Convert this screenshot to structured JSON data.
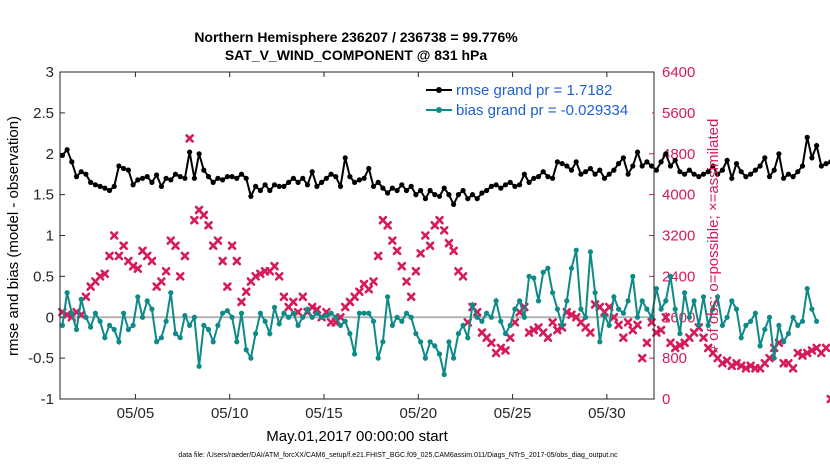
{
  "chart_data": {
    "type": "line",
    "title": "Northern Hemisphere 236207 / 236738 = 99.776%",
    "subtitle": "SAT_V_WIND_COMPONENT @ 831 hPa",
    "xlabel": "May.01,2017 00:00:00 start",
    "ylabel_left": "rmse and bias (model - observation)",
    "ylabel_right": "# of obs: o=possible; ×=assimilated",
    "xlim": [
      1.0,
      32.5
    ],
    "ylim_left": [
      -1,
      3
    ],
    "ylim_right": [
      0,
      6400
    ],
    "x_ticks": [
      5,
      10,
      15,
      20,
      25,
      30
    ],
    "x_tick_labels": [
      "05/05",
      "05/10",
      "05/15",
      "05/20",
      "05/25",
      "05/30"
    ],
    "y_left_ticks": [
      -1,
      -0.5,
      0,
      0.5,
      1,
      1.5,
      2,
      2.5,
      3
    ],
    "y_left_tick_labels": [
      "-1",
      "-0.5",
      "0",
      "0.5",
      "1",
      "1.5",
      "2",
      "2.5",
      "3"
    ],
    "y_right_ticks": [
      0,
      800,
      1600,
      2400,
      3200,
      4000,
      4800,
      5600,
      6400
    ],
    "y_right_tick_labels": [
      "0",
      "800",
      "1600",
      "2400",
      "3200",
      "4000",
      "4800",
      "5600",
      "6400"
    ],
    "zero_line": 0,
    "legend": {
      "placement": "top-right"
    },
    "x_start": 1.125,
    "x_step": 0.25,
    "series": [
      {
        "name": "rmse grand pr = 1.7182",
        "axis": "left",
        "color": "#000000",
        "marker": "dot",
        "values": [
          1.98,
          2.05,
          1.9,
          1.72,
          1.78,
          1.75,
          1.65,
          1.62,
          1.6,
          1.58,
          1.55,
          1.6,
          1.85,
          1.82,
          1.8,
          1.62,
          1.68,
          1.7,
          1.72,
          1.65,
          1.74,
          1.6,
          1.7,
          1.68,
          1.75,
          1.72,
          1.7,
          2.02,
          1.7,
          2.0,
          1.8,
          1.72,
          1.65,
          1.7,
          1.68,
          1.72,
          1.72,
          1.7,
          1.75,
          1.7,
          1.48,
          1.6,
          1.55,
          1.62,
          1.55,
          1.62,
          1.6,
          1.6,
          1.65,
          1.7,
          1.65,
          1.7,
          1.62,
          1.78,
          1.6,
          1.65,
          1.7,
          1.75,
          1.72,
          1.6,
          1.95,
          1.72,
          1.65,
          1.68,
          1.7,
          1.82,
          1.6,
          1.65,
          1.58,
          1.52,
          1.58,
          1.55,
          1.62,
          1.55,
          1.6,
          1.5,
          1.55,
          1.45,
          1.55,
          1.5,
          1.48,
          1.58,
          1.5,
          1.38,
          1.5,
          1.55,
          1.45,
          1.5,
          1.45,
          1.52,
          1.55,
          1.6,
          1.62,
          1.58,
          1.62,
          1.65,
          1.6,
          1.62,
          1.75,
          1.65,
          1.7,
          1.72,
          1.78,
          1.72,
          1.7,
          1.9,
          1.88,
          1.85,
          1.8,
          1.9,
          1.75,
          1.78,
          1.82,
          1.75,
          1.8,
          1.7,
          1.75,
          1.8,
          1.88,
          1.95,
          1.75,
          1.85,
          2.02,
          1.85,
          1.9,
          1.85,
          1.8,
          1.9,
          2.0,
          1.85,
          1.92,
          1.78,
          1.75,
          1.8,
          1.75,
          1.72,
          1.75,
          1.78,
          1.85,
          1.75,
          1.8,
          1.92,
          1.7,
          1.88,
          1.78,
          1.72,
          1.75,
          1.8,
          1.85,
          1.95,
          1.72,
          1.8,
          2.0,
          1.7,
          1.75,
          1.72,
          1.78,
          1.85,
          2.2,
          1.95,
          2.1,
          1.85,
          1.88,
          1.9
        ]
      },
      {
        "name": "bias grand pr = -0.029334",
        "axis": "left",
        "color": "#0e8a88",
        "marker": "dot",
        "values": [
          -0.1,
          0.3,
          0.05,
          -0.15,
          0.22,
          0.0,
          -0.12,
          0.05,
          -0.05,
          -0.25,
          -0.1,
          -0.15,
          -0.3,
          0.05,
          -0.15,
          -0.1,
          0.25,
          0.0,
          0.2,
          0.1,
          -0.3,
          -0.25,
          -0.05,
          0.3,
          -0.2,
          -0.25,
          0.02,
          -0.1,
          0.0,
          -0.6,
          -0.1,
          -0.15,
          -0.3,
          -0.1,
          0.05,
          0.08,
          0.0,
          -0.3,
          0.05,
          -0.4,
          -0.5,
          -0.2,
          0.05,
          -0.05,
          -0.2,
          0.12,
          -0.08,
          0.05,
          0.0,
          0.05,
          -0.1,
          0.0,
          0.1,
          0.0,
          0.05,
          0.0,
          0.02,
          0.05,
          0.0,
          -0.1,
          -0.05,
          -0.2,
          -0.45,
          0.05,
          0.05,
          0.05,
          -0.05,
          -0.5,
          -0.3,
          0.25,
          -0.1,
          0.0,
          -0.05,
          0.05,
          0.0,
          -0.2,
          -0.3,
          -0.5,
          -0.3,
          -0.35,
          -0.45,
          -0.7,
          -0.3,
          -0.5,
          -0.2,
          -0.1,
          -0.25,
          0.15,
          0.0,
          -0.05,
          0.05,
          0.0,
          0.2,
          -0.05,
          -0.2,
          -0.1,
          0.1,
          0.2,
          0.0,
          0.5,
          0.48,
          0.2,
          0.55,
          0.6,
          0.3,
          0.1,
          -0.1,
          0.2,
          0.6,
          0.82,
          0.1,
          0.0,
          0.8,
          0.3,
          -0.3,
          0.02,
          -0.1,
          0.25,
          0.1,
          0.05,
          0.2,
          0.5,
          0.0,
          0.2,
          0.1,
          0.0,
          0.35,
          0.1,
          0.2,
          0.5,
          0.1,
          -0.2,
          0.3,
          0.0,
          0.2,
          -0.1,
          0.25,
          -0.1,
          0.1,
          0.25,
          -0.1,
          0.0,
          0.2,
          0.1,
          -0.25,
          -0.1,
          -0.05,
          0.05,
          -0.35,
          -0.15,
          0.0,
          -0.5,
          -0.1,
          -0.3,
          -0.2,
          0.0,
          -0.1,
          -0.05,
          0.35,
          0.1,
          -0.05
        ]
      },
      {
        "name": "",
        "axis": "right",
        "color": "#d61a5a",
        "marker": "x",
        "values": [
          1700,
          1650,
          1600,
          1700,
          1650,
          2000,
          2200,
          2300,
          2400,
          2450,
          2800,
          3200,
          2800,
          3000,
          2700,
          2600,
          2550,
          2900,
          2800,
          2700,
          2200,
          2300,
          2500,
          3100,
          3000,
          2400,
          2800,
          5100,
          3500,
          3700,
          3600,
          3400,
          3000,
          3100,
          2700,
          2200,
          3000,
          2700,
          1900,
          2100,
          2300,
          2400,
          2450,
          2500,
          2500,
          2600,
          2400,
          2000,
          1800,
          1900,
          1700,
          2000,
          1700,
          1800,
          1750,
          1600,
          1700,
          1500,
          1500,
          1600,
          1800,
          1900,
          2000,
          2100,
          2250,
          2150,
          2300,
          2800,
          3500,
          3400,
          3100,
          2900,
          2600,
          2300,
          2000,
          2500,
          2850,
          3200,
          3000,
          3400,
          3500,
          3300,
          3050,
          2900,
          2500,
          2400,
          1500,
          1800,
          1700,
          1300,
          1200,
          1100,
          900,
          1000,
          950,
          1200,
          1500,
          1700,
          1800,
          1300,
          1350,
          1400,
          1300,
          1200,
          1500,
          1350,
          1400,
          1700,
          1650,
          1600,
          1500,
          1400,
          1300,
          1850,
          1800,
          1700,
          1800,
          1600,
          1450,
          1200,
          1500,
          1350,
          1450,
          800,
          1100,
          1500,
          1300,
          1350,
          1600,
          1100,
          1000,
          1050,
          1100,
          1200,
          1300,
          1400,
          1200,
          1000,
          900,
          800,
          700,
          750,
          650,
          700,
          650,
          600,
          650,
          600,
          600,
          700,
          800,
          1000,
          1100,
          700,
          700,
          600,
          900,
          850,
          900,
          950,
          1000,
          900,
          1000,
          0
        ]
      }
    ],
    "footnote": "data file: /Users/raeder/DAI/ATM_forcXX/CAM6_setup/f.e21.FHIST_BGC.f09_025.CAM6assim.011/Diags_NTrS_2017-05/obs_diag_output.nc"
  }
}
